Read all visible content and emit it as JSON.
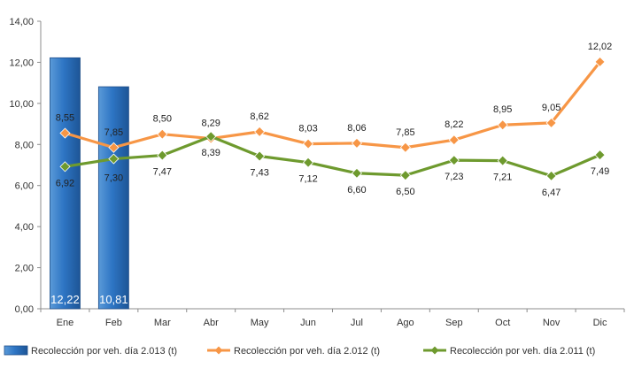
{
  "chart_data": {
    "type": "bar+line",
    "categories": [
      "Ene",
      "Feb",
      "Mar",
      "Abr",
      "May",
      "Jun",
      "Jul",
      "Ago",
      "Sep",
      "Oct",
      "Nov",
      "Dic"
    ],
    "ylim": [
      0,
      14
    ],
    "yticks": [
      "0,00",
      "2,00",
      "4,00",
      "6,00",
      "8,00",
      "10,00",
      "12,00",
      "14,00"
    ],
    "ytick_values": [
      0,
      2,
      4,
      6,
      8,
      10,
      12,
      14
    ],
    "grid": false,
    "legend_position": "bottom",
    "series": [
      {
        "name": "Recolección por veh. día 2.013 (t)",
        "kind": "bar",
        "color": "#2e75c4",
        "values": [
          12.22,
          10.81,
          null,
          null,
          null,
          null,
          null,
          null,
          null,
          null,
          null,
          null
        ],
        "labels": [
          "12,22",
          "10,81",
          "",
          "",
          "",
          "",
          "",
          "",
          "",
          "",
          "",
          ""
        ]
      },
      {
        "name": "Recolección por veh. día 2.012 (t)",
        "kind": "line",
        "color": "#f79646",
        "values": [
          8.55,
          7.85,
          8.5,
          8.29,
          8.62,
          8.03,
          8.06,
          7.85,
          8.22,
          8.95,
          9.05,
          12.02
        ],
        "labels": [
          "8,55",
          "7,85",
          "8,50",
          "8,29",
          "8,62",
          "8,03",
          "8,06",
          "7,85",
          "8,22",
          "8,95",
          "9,05",
          "12,02"
        ]
      },
      {
        "name": "Recolección por veh. día 2.011 (t)",
        "kind": "line",
        "color": "#6e9a2e",
        "values": [
          6.92,
          7.3,
          7.47,
          8.39,
          7.43,
          7.12,
          6.6,
          6.5,
          7.23,
          7.21,
          6.47,
          7.49
        ],
        "labels": [
          "6,92",
          "7,30",
          "7,47",
          "8,39",
          "7,43",
          "7,12",
          "6,60",
          "6,50",
          "7,23",
          "7,21",
          "6,47",
          "7,49"
        ]
      }
    ]
  }
}
